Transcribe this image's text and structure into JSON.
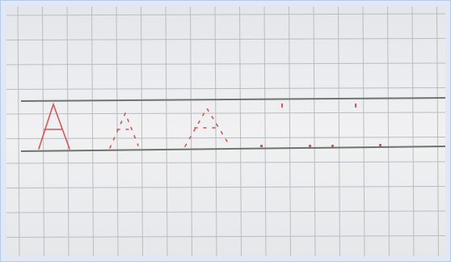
{
  "photo": {
    "subject": "handwritten-letter-practice-on-grid-paper",
    "handwritten_text": [
      "A"
    ],
    "colors": {
      "paper": "#efeff0",
      "grid_line": "#b9bcc2",
      "guide_line": "#6c7470",
      "ink": "#d0575d",
      "frame": "#dfe8f6"
    }
  }
}
